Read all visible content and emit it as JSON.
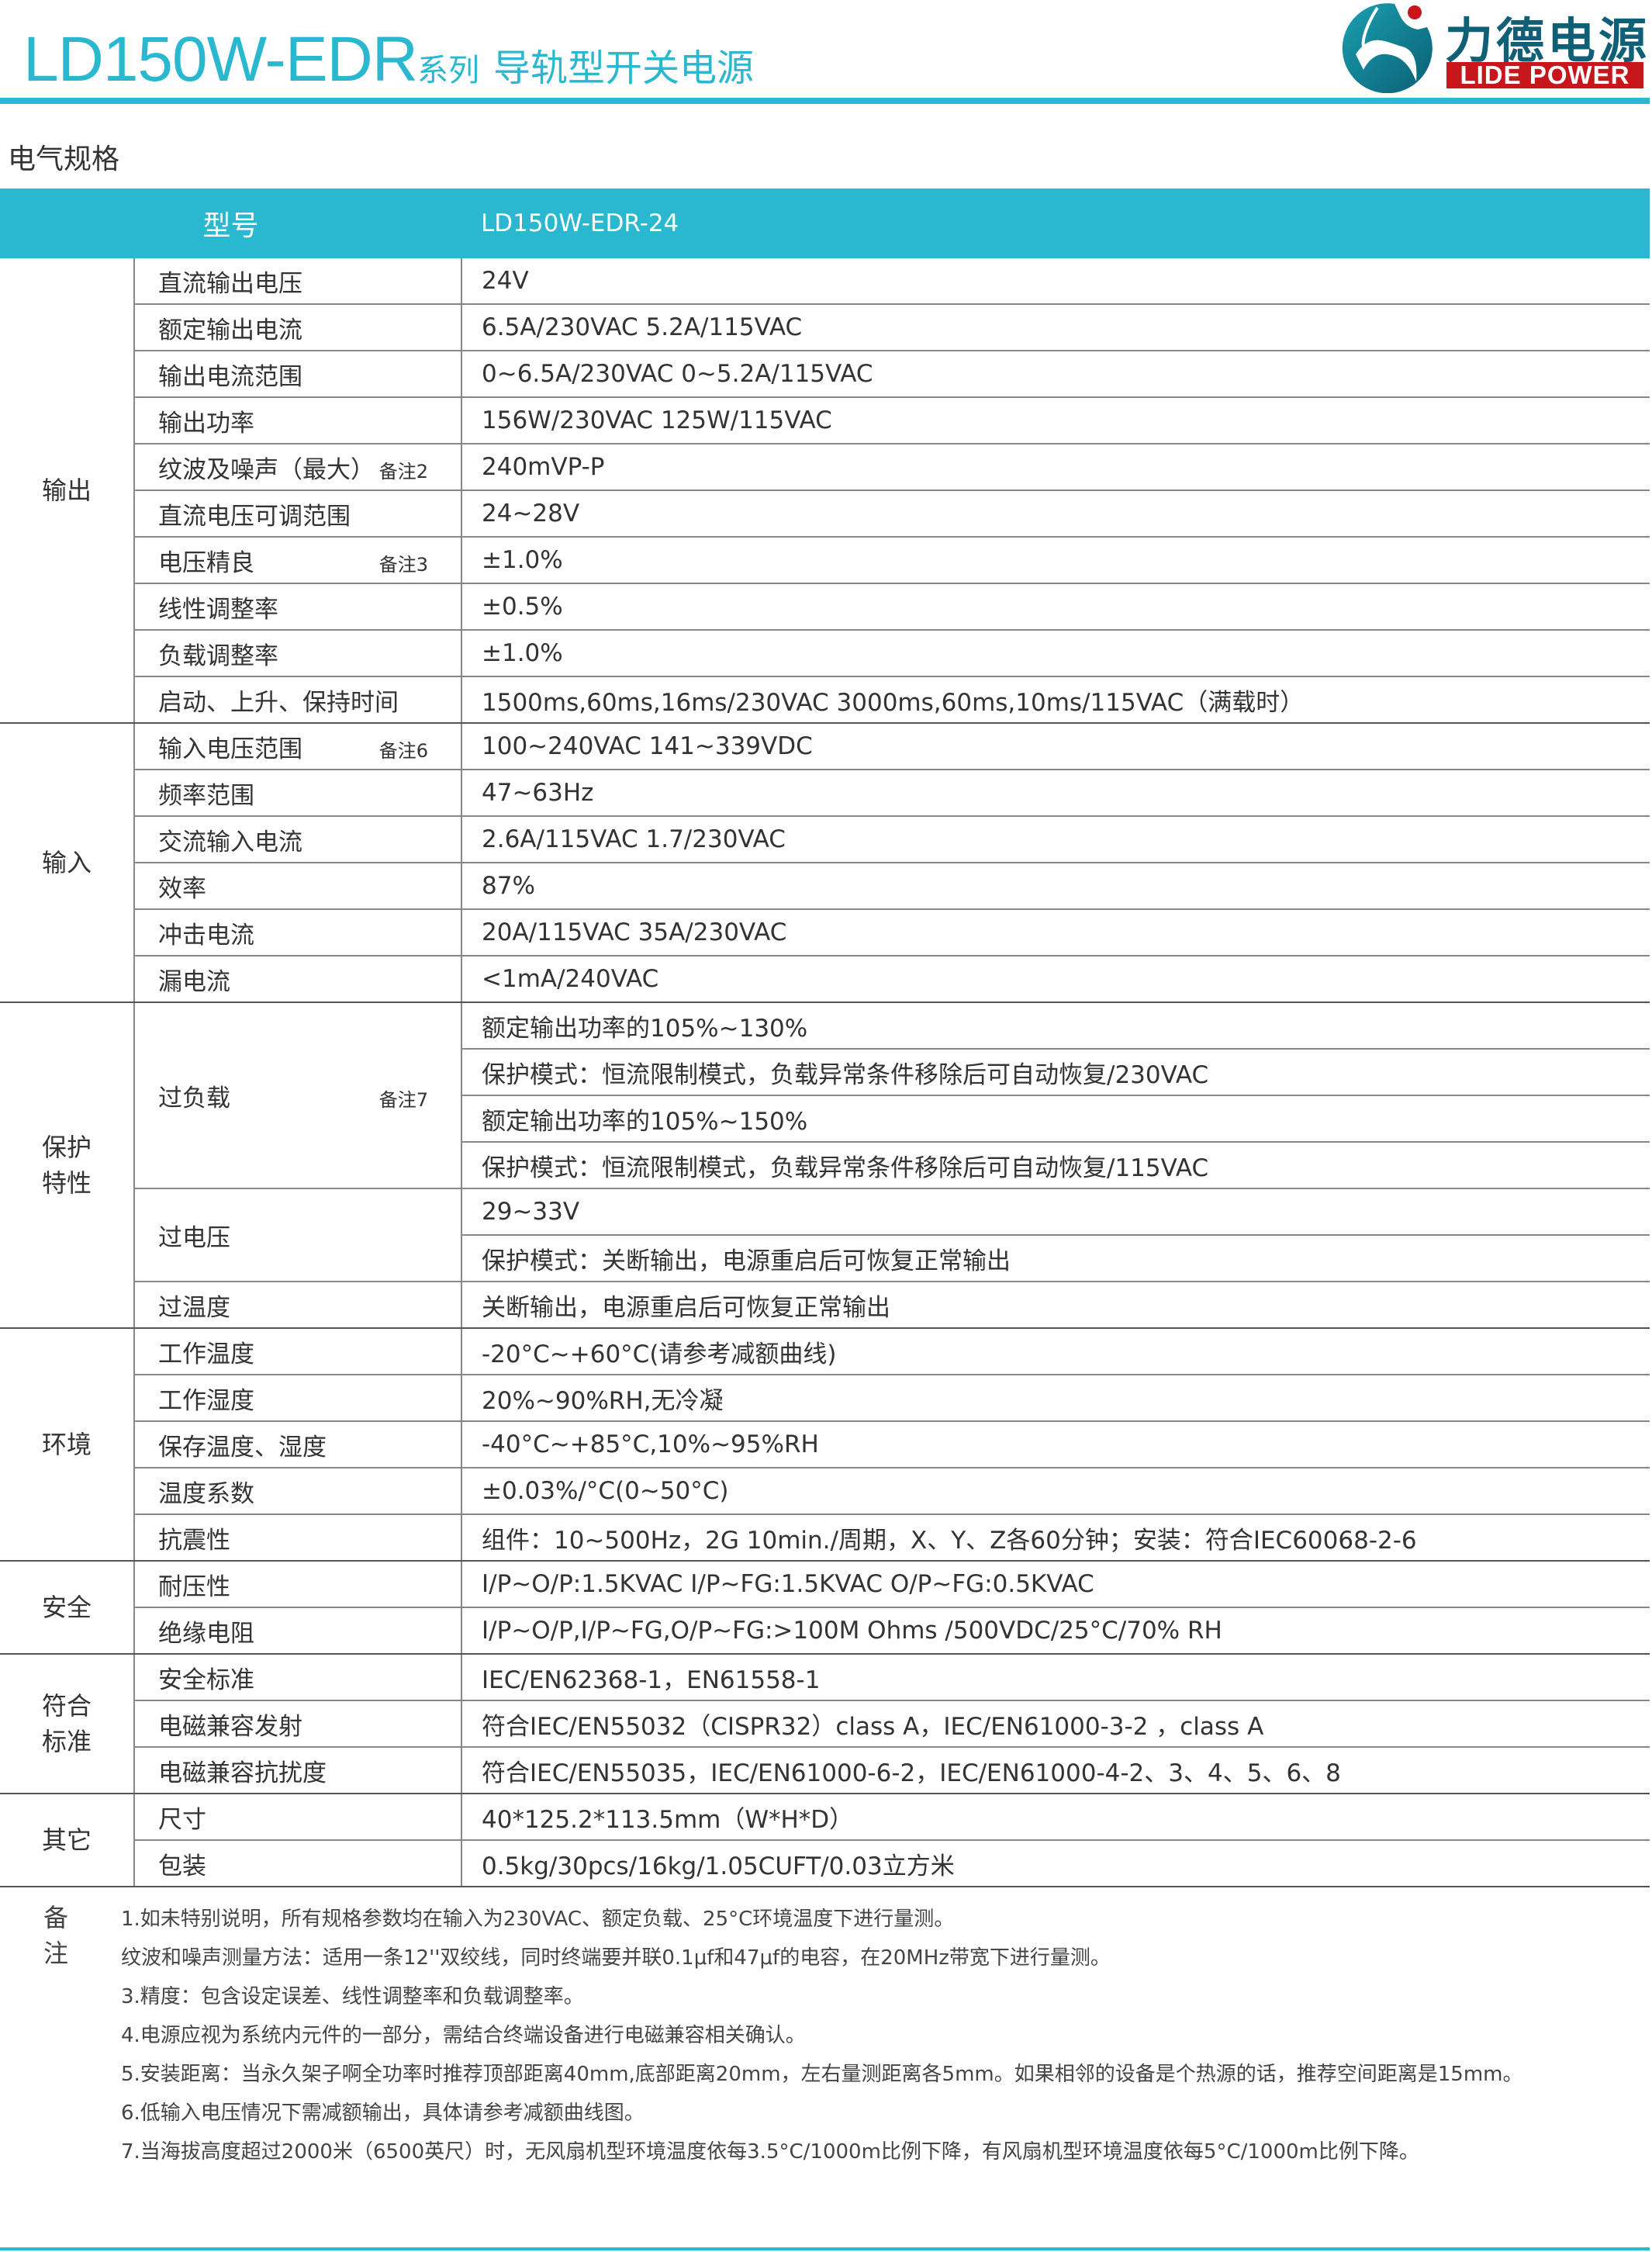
{
  "header": {
    "model": "LD150W-EDR",
    "series": "系列",
    "name": "导轨型开关电源"
  },
  "logo": {
    "cn": "力德电源",
    "en": "LIDE POWER",
    "colors": {
      "teal": "#0f5f76",
      "red": "#c8161d"
    }
  },
  "accent_color": "#29b8cf",
  "section_title": "电气规格",
  "table": {
    "head": {
      "label": "型号",
      "model": "LD150W-EDR-24"
    },
    "groups": [
      {
        "label": "输出",
        "rows": [
          {
            "param": "直流输出电压",
            "values": [
              "24V"
            ]
          },
          {
            "param": "额定输出电流",
            "values": [
              "6.5A/230VAC    5.2A/115VAC"
            ]
          },
          {
            "param": "输出电流范围",
            "values": [
              "0~6.5A/230VAC    0~5.2A/115VAC"
            ]
          },
          {
            "param": "输出功率",
            "values": [
              "156W/230VAC   125W/115VAC"
            ]
          },
          {
            "param": "纹波及噪声（最大）",
            "note": "备注2",
            "values": [
              "240mVP-P"
            ]
          },
          {
            "param": "直流电压可调范围",
            "values": [
              "24~28V"
            ]
          },
          {
            "param": "电压精良",
            "note": "备注3",
            "values": [
              "±1.0%"
            ]
          },
          {
            "param": "线性调整率",
            "values": [
              "±0.5%"
            ]
          },
          {
            "param": "负载调整率",
            "values": [
              "±1.0%"
            ]
          },
          {
            "param": "启动、上升、保持时间",
            "values": [
              "1500ms,60ms,16ms/230VAC        3000ms,60ms,10ms/115VAC（满载时）"
            ]
          }
        ]
      },
      {
        "label": "输入",
        "rows": [
          {
            "param": "输入电压范围",
            "note": "备注6",
            "values": [
              "100~240VAC   141~339VDC"
            ]
          },
          {
            "param": "频率范围",
            "values": [
              "47~63Hz"
            ]
          },
          {
            "param": "交流输入电流",
            "values": [
              "2.6A/115VAC    1.7/230VAC"
            ]
          },
          {
            "param": "效率",
            "values": [
              "87%"
            ]
          },
          {
            "param": "冲击电流",
            "values": [
              "20A/115VAC    35A/230VAC"
            ]
          },
          {
            "param": "漏电流",
            "values": [
              "<1mA/240VAC"
            ]
          }
        ]
      },
      {
        "label": "保护\n特性",
        "rows": [
          {
            "param": "过负载",
            "note": "备注7",
            "values": [
              "额定输出功率的105%~130%",
              "保护模式：恒流限制模式，负载异常条件移除后可自动恢复/230VAC",
              "额定输出功率的105%~150%",
              "保护模式：恒流限制模式，负载异常条件移除后可自动恢复/115VAC"
            ]
          },
          {
            "param": "过电压",
            "values": [
              "29~33V",
              "保护模式：关断输出，电源重启后可恢复正常输出"
            ]
          },
          {
            "param": "过温度",
            "values": [
              "关断输出，电源重启后可恢复正常输出"
            ]
          }
        ]
      },
      {
        "label": "环境",
        "rows": [
          {
            "param": "工作温度",
            "values": [
              "-20°C~+60°C(请参考减额曲线)"
            ]
          },
          {
            "param": "工作湿度",
            "values": [
              "20%~90%RH,无冷凝"
            ]
          },
          {
            "param": "保存温度、湿度",
            "values": [
              "-40°C~+85°C,10%~95%RH"
            ]
          },
          {
            "param": "温度系数",
            "values": [
              "±0.03%/°C(0~50°C)"
            ]
          },
          {
            "param": "抗震性",
            "values": [
              "组件：10~500Hz，2G  10min./周期，X、Y、Z各60分钟；安装：符合IEC60068-2-6"
            ]
          }
        ]
      },
      {
        "label": "安全",
        "rows": [
          {
            "param": "耐压性",
            "values": [
              "I/P~O/P:1.5KVAC  I/P~FG:1.5KVAC  O/P~FG:0.5KVAC"
            ]
          },
          {
            "param": "绝缘电阻",
            "values": [
              "I/P~O/P,I/P~FG,O/P~FG:>100M  Ohms /500VDC/25°C/70% RH"
            ]
          }
        ]
      },
      {
        "label": "符合\n标准",
        "rows": [
          {
            "param": "安全标准",
            "values": [
              "IEC/EN62368-1，EN61558-1"
            ]
          },
          {
            "param": "电磁兼容发射",
            "values": [
              "符合IEC/EN55032（CISPR32）class  A，IEC/EN61000-3-2 ，class  A"
            ]
          },
          {
            "param": "电磁兼容抗扰度",
            "values": [
              "符合IEC/EN55035，IEC/EN61000-6-2，IEC/EN61000-4-2、3、4、5、6、8"
            ]
          }
        ]
      },
      {
        "label": "其它",
        "rows": [
          {
            "param": "尺寸",
            "values": [
              "40*125.2*113.5mm（W*H*D）"
            ]
          },
          {
            "param": "包装",
            "values": [
              "0.5kg/30pcs/16kg/1.05CUFT/0.03立方米"
            ]
          }
        ]
      }
    ]
  },
  "notes": {
    "label": "备注",
    "lines": [
      "1.如未特别说明，所有规格参数均在输入为230VAC、额定负载、25°C环境温度下进行量测。",
      "纹波和噪声测量方法：适用一条12''双绞线，同时终端要并联0.1μf和47μf的电容，在20MHz带宽下进行量测。",
      "3.精度：包含设定误差、线性调整率和负载调整率。",
      "4.电源应视为系统内元件的一部分，需结合终端设备进行电磁兼容相关确认。",
      "5.安装距离：当永久架子啊全功率时推荐顶部距离40mm,底部距离20mm，左右量测距离各5mm。如果相邻的设备是个热源的话，推荐空间距离是15mm。",
      "6.低输入电压情况下需减额输出，具体请参考减额曲线图。",
      "7.当海拔高度超过2000米（6500英尺）时，无风扇机型环境温度依每3.5°C/1000m比例下降，有风扇机型环境温度依每5°C/1000m比例下降。"
    ]
  }
}
